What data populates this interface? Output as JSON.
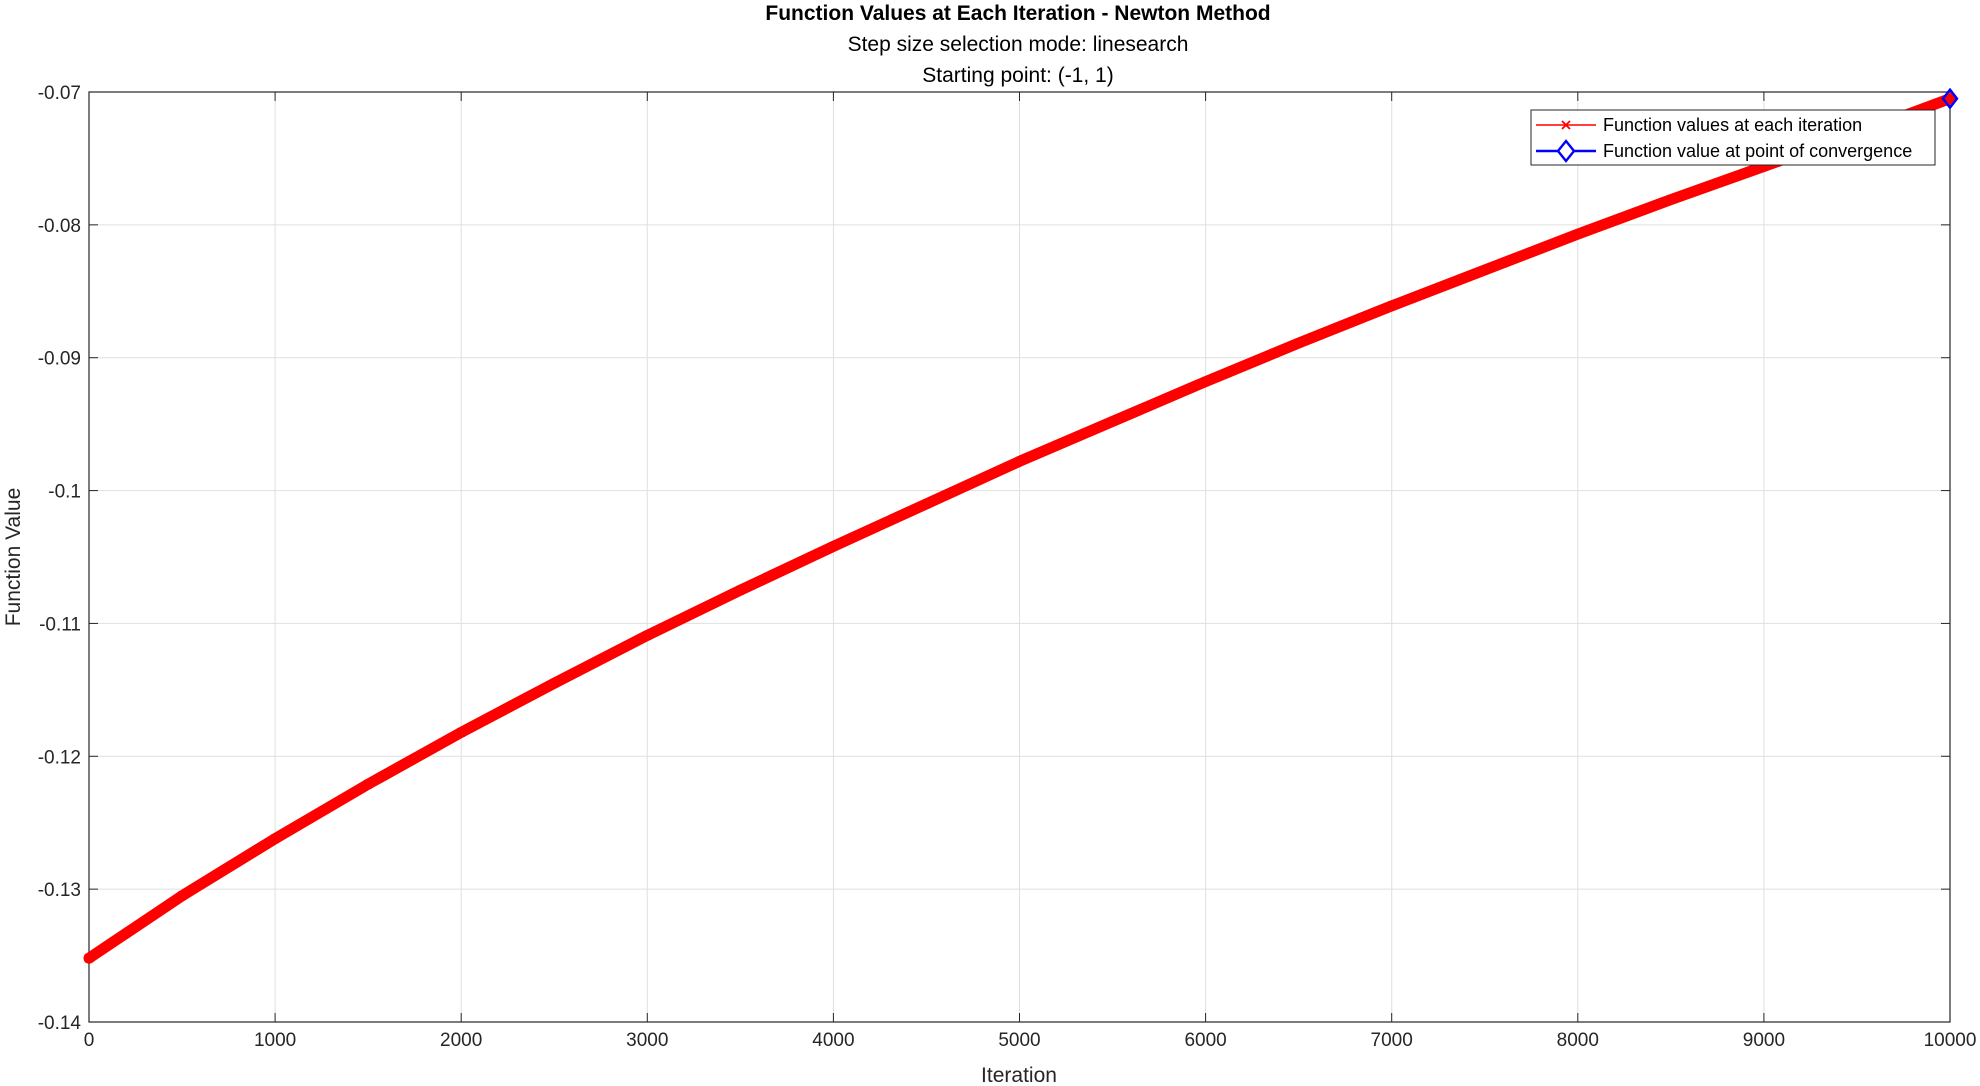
{
  "chart_data": {
    "type": "line",
    "title": "Function Values at Each Iteration - Newton Method",
    "subtitle_lines": [
      "Step size selection mode: linesearch",
      "Starting point: (-1, 1)"
    ],
    "xlabel": "Iteration",
    "ylabel": "Function Value",
    "xlim": [
      0,
      10000
    ],
    "ylim": [
      -0.14,
      -0.07
    ],
    "xticks": [
      0,
      1000,
      2000,
      3000,
      4000,
      5000,
      6000,
      7000,
      8000,
      9000,
      10000
    ],
    "yticks": [
      -0.14,
      -0.13,
      -0.12,
      -0.11,
      -0.1,
      -0.09,
      -0.08,
      -0.07
    ],
    "xtick_labels": [
      "0",
      "1000",
      "2000",
      "3000",
      "4000",
      "5000",
      "6000",
      "7000",
      "8000",
      "9000",
      "10000"
    ],
    "ytick_labels": [
      "-0.14",
      "-0.13",
      "-0.12",
      "-0.11",
      "-0.1",
      "-0.09",
      "-0.08",
      "-0.07"
    ],
    "grid": true,
    "legend_position": "top-right",
    "series": [
      {
        "name": "Function values at each iteration",
        "color": "#ff0000",
        "marker": "x",
        "x": [
          0,
          500,
          1000,
          1500,
          2000,
          2500,
          3000,
          3500,
          4000,
          4500,
          5000,
          5500,
          6000,
          6500,
          7000,
          7500,
          8000,
          8500,
          9000,
          9500,
          10000
        ],
        "y": [
          -0.1352,
          -0.1305,
          -0.1262,
          -0.1221,
          -0.1182,
          -0.1145,
          -0.1109,
          -0.1075,
          -0.1042,
          -0.101,
          -0.0978,
          -0.0948,
          -0.0918,
          -0.0889,
          -0.0861,
          -0.0834,
          -0.0807,
          -0.0781,
          -0.0756,
          -0.0731,
          -0.0705
        ]
      },
      {
        "name": "Function value at point of convergence",
        "color": "#0000ff",
        "marker": "diamond",
        "x": [
          10000
        ],
        "y": [
          -0.0705
        ]
      }
    ]
  }
}
